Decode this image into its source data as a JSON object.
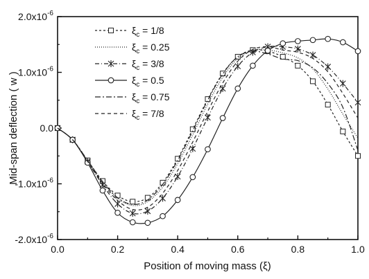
{
  "chart_data": {
    "type": "line",
    "xlabel": "Position of moving mass (ξ)",
    "ylabel": "Mid-span deflection ( w )",
    "xlim": [
      0.0,
      1.0
    ],
    "ylim": [
      -2e-06,
      2e-06
    ],
    "grid": false,
    "legend_position": "top-left",
    "x_ticks": [
      "0.0",
      "0.2",
      "0.4",
      "0.6",
      "0.8",
      "1.0"
    ],
    "y_ticks": [
      {
        "mantissa": "-2.0x10",
        "exp": "-6"
      },
      {
        "mantissa": "-1.0x10",
        "exp": "-6"
      },
      {
        "mantissa": "0.0",
        "exp": ""
      },
      {
        "mantissa": "1.0x10",
        "exp": "-6"
      },
      {
        "mantissa": "2.0x10",
        "exp": "-6"
      }
    ],
    "x": [
      0.0,
      0.05,
      0.1,
      0.15,
      0.2,
      0.25,
      0.3,
      0.35,
      0.4,
      0.45,
      0.5,
      0.55,
      0.6,
      0.65,
      0.7,
      0.75,
      0.8,
      0.85,
      0.9,
      0.95,
      1.0
    ],
    "series": [
      {
        "label_main": "ξ",
        "label_sub": "c",
        "label_value": " = 1/8",
        "dash": "3,3",
        "marker": "square",
        "values": [
          0.0,
          -2.1e-07,
          -5.8e-07,
          -9.5e-07,
          -1.21e-06,
          -1.32e-06,
          -1.25e-06,
          -9.8e-07,
          -5.5e-07,
          -2e-08,
          5.2e-07,
          9.8e-07,
          1.28e-06,
          1.4e-06,
          1.38e-06,
          1.28e-06,
          1.12e-06,
          8.4e-07,
          4.2e-07,
          -6e-08,
          -5e-07
        ]
      },
      {
        "label_main": "ξ",
        "label_sub": "c",
        "label_value": " = 0.25",
        "dash": "1,2",
        "marker": "none",
        "values": [
          0.0,
          -2.1e-07,
          -5.9e-07,
          -9.7e-07,
          -1.26e-06,
          -1.39e-06,
          -1.32e-06,
          -1.06e-06,
          -6.4e-07,
          -1.2e-07,
          4.3e-07,
          9.1e-07,
          1.25e-06,
          1.39e-06,
          1.4e-06,
          1.35e-06,
          1.26e-06,
          1.06e-06,
          7e-07,
          2.5e-07,
          -1.8e-07
        ]
      },
      {
        "label_main": "ξ",
        "label_sub": "c",
        "label_value": " = 3/8",
        "dash": "6,3,1,3",
        "marker": "star",
        "values": [
          0.0,
          -2.1e-07,
          -6e-07,
          -1.02e-06,
          -1.36e-06,
          -1.53e-06,
          -1.49e-06,
          -1.26e-06,
          -8.7e-07,
          -3.7e-07,
          1.9e-07,
          7.1e-07,
          1.11e-06,
          1.36e-06,
          1.46e-06,
          1.46e-06,
          1.42e-06,
          1.31e-06,
          1.1e-06,
          8e-07,
          4.6e-07
        ]
      },
      {
        "label_main": "ξ",
        "label_sub": "c",
        "label_value": " = 0.5",
        "dash": "",
        "marker": "circle",
        "values": [
          0.0,
          -2.1e-07,
          -6.2e-07,
          -1.12e-06,
          -1.52e-06,
          -1.69e-06,
          -1.7e-06,
          -1.58e-06,
          -1.29e-06,
          -8.8e-07,
          -3.8e-07,
          1.8e-07,
          7.1e-07,
          1.12e-06,
          1.39e-06,
          1.52e-06,
          1.56e-06,
          1.58e-06,
          1.6e-06,
          1.54e-06,
          1.38e-06
        ]
      },
      {
        "label_main": "ξ",
        "label_sub": "c",
        "label_value": " = 0.75",
        "dash": "8,3,2,3",
        "marker": "none",
        "values": [
          0.0,
          -2.1e-07,
          -5.8e-07,
          -9.6e-07,
          -1.25e-06,
          -1.37e-06,
          -1.29e-06,
          -1.01e-06,
          -5.8e-07,
          -5e-08,
          5e-07,
          9.7e-07,
          1.28e-06,
          1.38e-06,
          1.33e-06,
          1.24e-06,
          1.21e-06,
          1.08e-06,
          8e-07,
          3.7e-07,
          -4e-07
        ]
      },
      {
        "label_main": "ξ",
        "label_sub": "c",
        "label_value": " = 7/8",
        "dash": "5,4",
        "marker": "none",
        "values": [
          0.0,
          -2.1e-07,
          -6e-07,
          -9.9e-07,
          -1.3e-06,
          -1.46e-06,
          -1.42e-06,
          -1.17e-06,
          -7.6e-07,
          -2.5e-07,
          3e-07,
          8.1e-07,
          1.2e-06,
          1.41e-06,
          1.46e-06,
          1.4e-06,
          1.36e-06,
          1.25e-06,
          1.01e-06,
          6.2e-07,
          1.8e-07
        ]
      }
    ]
  }
}
